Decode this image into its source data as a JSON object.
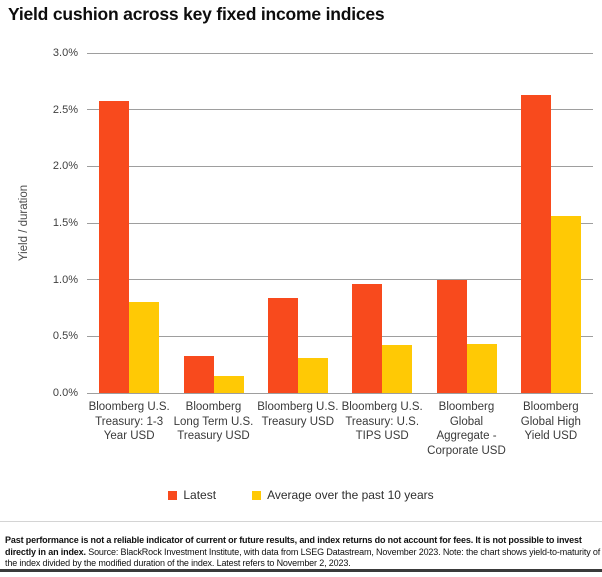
{
  "title": "Yield cushion across key fixed income indices",
  "chart_data": {
    "type": "bar",
    "title": "Yield cushion across key fixed income indices",
    "ylabel": "Yield / duration",
    "xlabel": "",
    "ylim": [
      0,
      3.0
    ],
    "grid": true,
    "legend_position": "bottom",
    "yticks": [
      {
        "label": "0.0%",
        "value": 0.0
      },
      {
        "label": "0.5%",
        "value": 0.5
      },
      {
        "label": "1.0%",
        "value": 1.0
      },
      {
        "label": "1.5%",
        "value": 1.5
      },
      {
        "label": "2.0%",
        "value": 2.0
      },
      {
        "label": "2.5%",
        "value": 2.5
      },
      {
        "label": "3.0%",
        "value": 3.0
      }
    ],
    "categories": [
      "Bloomberg U.S. Treasury: 1-3 Year USD",
      "Bloomberg Long Term U.S. Treasury USD",
      "Bloomberg U.S. Treasury USD",
      "Bloomberg U.S. Treasury: U.S. TIPS USD",
      "Bloomberg Global Aggregate - Corporate USD",
      "Bloomberg Global High Yield USD"
    ],
    "series": [
      {
        "name": "Latest",
        "color": "#F84A1D",
        "values": [
          2.58,
          0.33,
          0.84,
          0.96,
          1.0,
          2.63
        ]
      },
      {
        "name": "Average over the past 10 years",
        "color": "#FFC905",
        "values": [
          0.8,
          0.15,
          0.31,
          0.42,
          0.43,
          1.56
        ]
      }
    ]
  },
  "footnote": {
    "bold": "Past performance is not a reliable indicator of current or future results, and index returns do not account for fees. It is not possible to invest directly in an index.",
    "regular": " Source: BlackRock Investment Institute, with data from LSEG Datastream, November 2023. Note: the chart shows yield-to-maturity of the index divided by the modified duration of the index. Latest refers to November 2, 2023."
  }
}
